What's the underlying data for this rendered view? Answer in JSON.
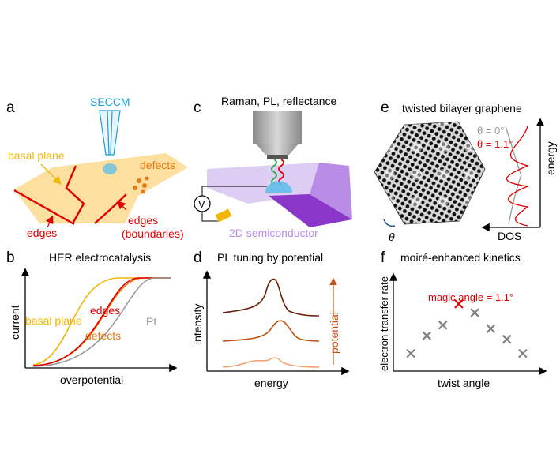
{
  "colors": {
    "gold": "#f2b705",
    "orange": "#e6780e",
    "red": "#e00000",
    "gray": "#9a9a9a",
    "seccm_blue": "#1a9fd6",
    "basal_fill": "#fde0a0",
    "purple_light": "#d9c8f2",
    "purple_mid": "#b98de6",
    "purple_dark": "#8a36c9",
    "pl_dark": "#6b1e08",
    "pl_mid": "#c0500f",
    "pl_light": "#f2a070",
    "potential_arrow": "#c8501a",
    "marker_gray": "#808080"
  },
  "panel_a": {
    "letter": "a",
    "seccm": "SECCM",
    "basal_plane": "basal plane",
    "defects": "defects",
    "edges": "edges",
    "edges_boundaries_1": "edges",
    "edges_boundaries_2": "(boundaries)"
  },
  "panel_b": {
    "letter": "b",
    "title": "HER electrocatalysis",
    "ylabel": "current",
    "xlabel": "overpotential",
    "label_basal": "basal plane",
    "label_edges": "edges",
    "label_defects": "defects",
    "label_pt": "Pt"
  },
  "panel_c": {
    "letter": "c",
    "title": "Raman, PL, reflectance",
    "voltmeter": "V",
    "substrate": "2D semiconductor"
  },
  "panel_d": {
    "letter": "d",
    "title": "PL tuning by potential",
    "ylabel": "intensity",
    "xlabel": "energy",
    "potential": "potential"
  },
  "panel_e": {
    "letter": "e",
    "title": "twisted bilayer graphene",
    "theta0": "θ = 0°",
    "theta11": "θ = 1.1°",
    "ylabel": "energy",
    "xlabel": "DOS",
    "theta": "θ"
  },
  "panel_f": {
    "letter": "f",
    "title": "moiré-enhanced kinetics",
    "ylabel": "electron transfer rate",
    "xlabel": "twist angle",
    "magic": "magic angle = 1.1°"
  },
  "chart_data": {
    "type": "scatter",
    "title": "moiré-enhanced kinetics",
    "xlabel": "twist angle",
    "ylabel": "electron transfer rate",
    "x": [
      1,
      2,
      3,
      4,
      5,
      6,
      7,
      8
    ],
    "y": [
      1.0,
      2.0,
      2.6,
      3.8,
      3.3,
      2.4,
      1.8,
      1.0
    ],
    "highlight_index": 3,
    "highlight_label": "magic angle = 1.1°"
  }
}
